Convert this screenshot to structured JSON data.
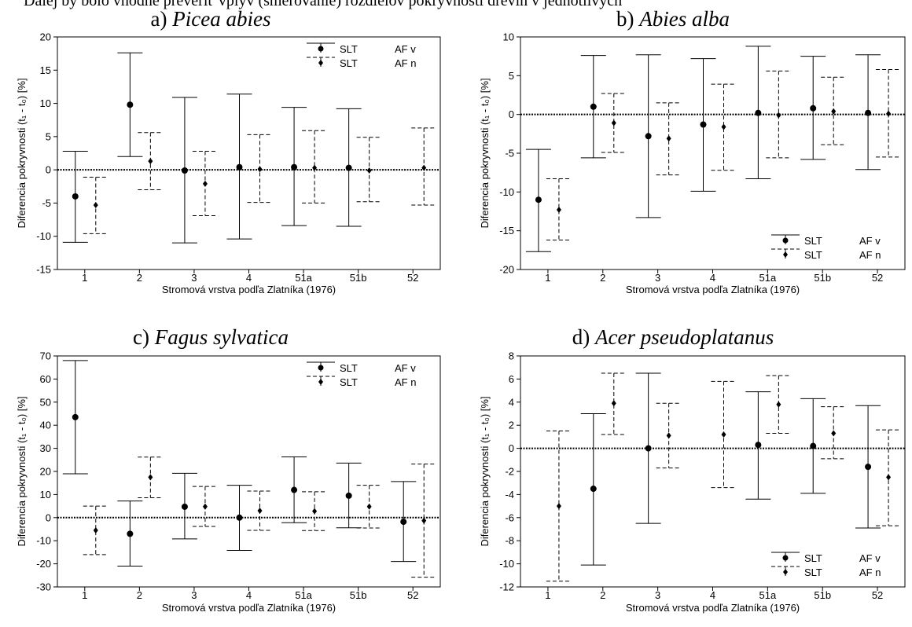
{
  "page": {
    "top_text": "Ďalej by bolo vhodné preveriť vplyv (smerovanie) rozdielov pokryvnosti drevín v jednotlivých"
  },
  "chart_data": [
    {
      "type": "scatter",
      "panel": "a",
      "title_prefix": "a) ",
      "title_species": "Picea abies",
      "xlabel": "Stromová vrstva podľa Zlatníka (1976)",
      "ylabel": "Diferencia pokryvnosti (t₁ - t₀) [%]",
      "categories": [
        "1",
        "2",
        "3",
        "4",
        "51a",
        "51b",
        "52"
      ],
      "ylim": [
        -15,
        20
      ],
      "yticks": [
        -15,
        -10,
        -5,
        0,
        5,
        10,
        15,
        20
      ],
      "legend_position": "top-right",
      "series": [
        {
          "legend_label": "SLT",
          "legend_extra": "AF v",
          "line": "solid",
          "marker": "circle",
          "mean": [
            -4.0,
            9.8,
            -0.1,
            0.4,
            0.4,
            0.3,
            null
          ],
          "lower": [
            -10.9,
            2.0,
            -11.0,
            -10.4,
            -8.4,
            -8.5,
            null
          ],
          "upper": [
            2.8,
            17.6,
            10.9,
            11.4,
            9.4,
            9.2,
            null
          ]
        },
        {
          "legend_label": "SLT",
          "legend_extra": "AF n",
          "line": "dashed",
          "marker": "diamond",
          "mean": [
            -5.3,
            1.3,
            -2.1,
            0.1,
            0.3,
            -0.1,
            0.3
          ],
          "lower": [
            -9.6,
            -3.0,
            -6.9,
            -4.9,
            -5.0,
            -4.8,
            -5.3
          ],
          "upper": [
            -1.1,
            5.6,
            2.8,
            5.3,
            5.9,
            4.9,
            6.3
          ]
        }
      ]
    },
    {
      "type": "scatter",
      "panel": "b",
      "title_prefix": "b) ",
      "title_species": "Abies alba",
      "xlabel": "Stromová vrstva podľa Zlatníka (1976)",
      "ylabel": "Diferencia pokryvnosti (t₁ - t₀) [%]",
      "categories": [
        "1",
        "2",
        "3",
        "4",
        "51a",
        "51b",
        "52"
      ],
      "ylim": [
        -20,
        10
      ],
      "yticks": [
        -20,
        -15,
        -10,
        -5,
        0,
        5,
        10
      ],
      "legend_position": "bottom-right",
      "series": [
        {
          "legend_label": "SLT",
          "legend_extra": "AF v",
          "line": "solid",
          "marker": "circle",
          "mean": [
            -11.0,
            1.0,
            -2.8,
            -1.3,
            0.2,
            0.8,
            0.2
          ],
          "lower": [
            -17.7,
            -5.6,
            -13.3,
            -9.9,
            -8.3,
            -5.8,
            -7.1
          ],
          "upper": [
            -4.5,
            7.6,
            7.7,
            7.2,
            8.8,
            7.5,
            7.7
          ]
        },
        {
          "legend_label": "SLT",
          "legend_extra": "AF n",
          "line": "dashed",
          "marker": "diamond",
          "mean": [
            -12.3,
            -1.1,
            -3.1,
            -1.6,
            -0.1,
            0.4,
            0.1
          ],
          "lower": [
            -16.2,
            -4.9,
            -7.8,
            -7.2,
            -5.6,
            -3.9,
            -5.5
          ],
          "upper": [
            -8.3,
            2.7,
            1.5,
            3.9,
            5.6,
            4.8,
            5.8
          ]
        }
      ]
    },
    {
      "type": "scatter",
      "panel": "c",
      "title_prefix": "c) ",
      "title_species": "Fagus sylvatica",
      "xlabel": "Stromová vrstva podľa Zlatníka (1976)",
      "ylabel": "Diferencia pokryvnosti (t₁ - t₀) [%]",
      "categories": [
        "1",
        "2",
        "3",
        "4",
        "51a",
        "51b",
        "52"
      ],
      "ylim": [
        -30,
        70
      ],
      "yticks": [
        -30,
        -20,
        -10,
        0,
        10,
        20,
        30,
        40,
        50,
        60,
        70
      ],
      "legend_position": "top-right",
      "series": [
        {
          "legend_label": "SLT",
          "legend_extra": "AF v",
          "line": "solid",
          "marker": "circle",
          "mean": [
            43.5,
            -7.0,
            4.7,
            0.0,
            12.0,
            9.5,
            -1.8
          ],
          "lower": [
            19.0,
            -21.0,
            -9.2,
            -14.2,
            -2.2,
            -4.4,
            -19.0
          ],
          "upper": [
            68.0,
            7.2,
            19.2,
            14.0,
            26.3,
            23.6,
            15.6
          ]
        },
        {
          "legend_label": "SLT",
          "legend_extra": "AF n",
          "line": "dashed",
          "marker": "diamond",
          "mean": [
            -5.5,
            17.5,
            4.8,
            3.0,
            2.8,
            4.8,
            -1.3
          ],
          "lower": [
            -16.0,
            8.6,
            -3.8,
            -5.5,
            -5.6,
            -4.5,
            -25.8
          ],
          "upper": [
            5.0,
            26.2,
            13.5,
            11.5,
            11.2,
            14.0,
            23.2
          ]
        }
      ]
    },
    {
      "type": "scatter",
      "panel": "d",
      "title_prefix": "d) ",
      "title_species": "Acer pseudoplatanus",
      "xlabel": "Stromová vrstva podľa Zlatníka (1976)",
      "ylabel": "Diferencia pokryvnosti (t₁ - t₀) [%]",
      "categories": [
        "1",
        "2",
        "3",
        "4",
        "51a",
        "51b",
        "52"
      ],
      "ylim": [
        -12,
        8
      ],
      "yticks": [
        -12,
        -10,
        -8,
        -6,
        -4,
        -2,
        0,
        2,
        4,
        6,
        8
      ],
      "legend_position": "bottom-right",
      "series": [
        {
          "legend_label": "SLT",
          "legend_extra": "AF v",
          "line": "solid",
          "marker": "circle",
          "mean": [
            null,
            -3.5,
            0.0,
            null,
            0.3,
            0.2,
            -1.6
          ],
          "lower": [
            null,
            -10.1,
            -6.5,
            null,
            -4.4,
            -3.9,
            -6.9
          ],
          "upper": [
            null,
            3.0,
            6.5,
            null,
            4.9,
            4.3,
            3.7
          ]
        },
        {
          "legend_label": "SLT",
          "legend_extra": "AF n",
          "line": "dashed",
          "marker": "diamond",
          "mean": [
            -5.0,
            3.9,
            1.1,
            1.2,
            3.8,
            1.3,
            -2.5
          ],
          "lower": [
            -11.5,
            1.2,
            -1.7,
            -3.4,
            1.3,
            -0.9,
            -6.7
          ],
          "upper": [
            1.5,
            6.5,
            3.9,
            5.8,
            6.3,
            3.6,
            1.6
          ]
        }
      ]
    }
  ]
}
